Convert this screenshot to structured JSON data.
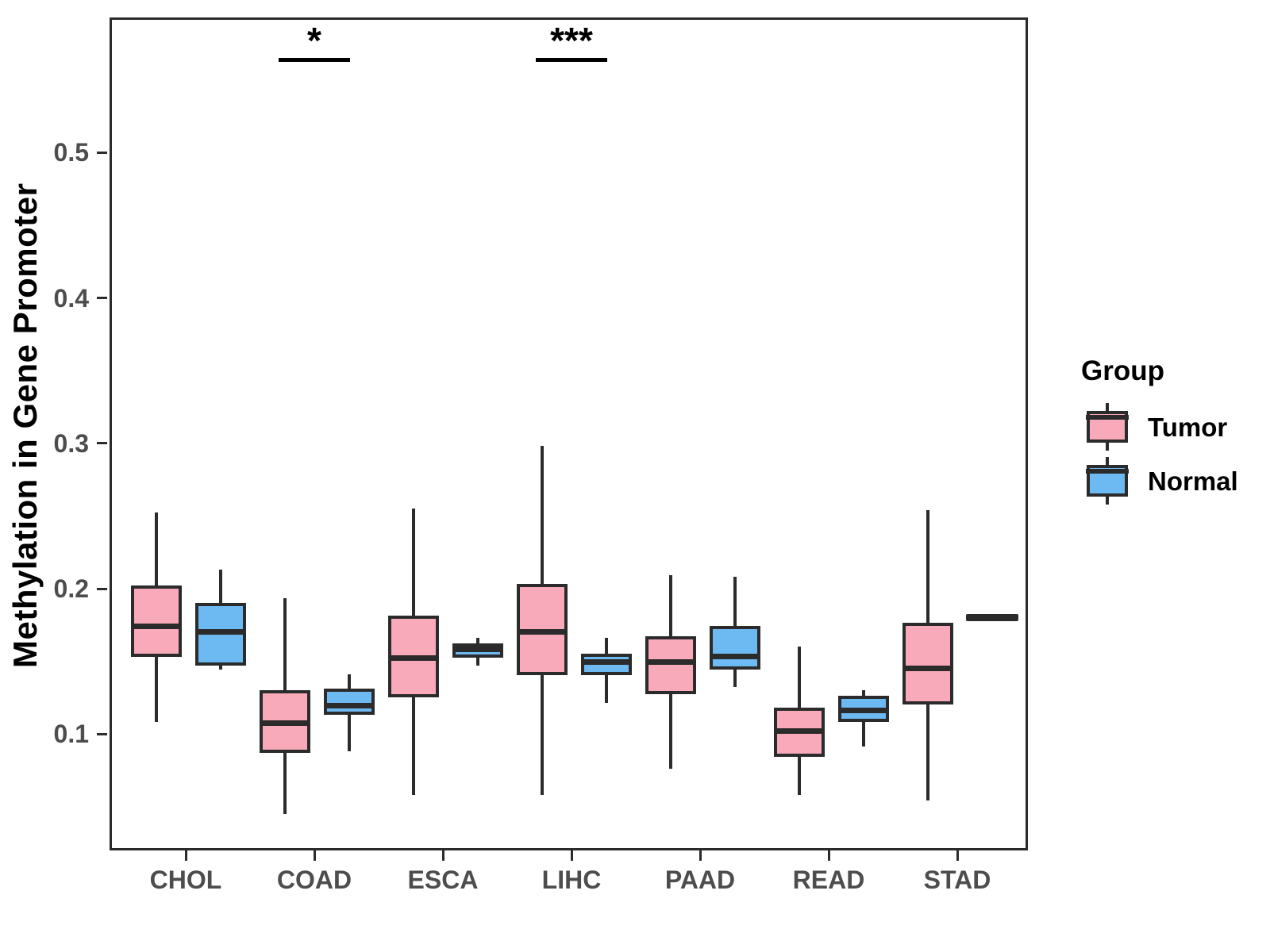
{
  "figure": {
    "y_axis": {
      "title": "Methylation in Gene Promoter",
      "tick_labels": [
        "0.1",
        "0.2",
        "0.3",
        "0.4",
        "0.5"
      ],
      "tick_values": [
        0.1,
        0.2,
        0.3,
        0.4,
        0.5
      ]
    },
    "x_axis": {
      "categories": [
        "CHOL",
        "COAD",
        "ESCA",
        "LIHC",
        "PAAD",
        "READ",
        "STAD"
      ]
    },
    "legend": {
      "title": "Group",
      "items": [
        {
          "label": "Tumor",
          "color": "#f9aaba"
        },
        {
          "label": "Normal",
          "color": "#6db9f2"
        }
      ]
    },
    "colors": {
      "tumor_fill": "#f9aaba",
      "normal_fill": "#6db9f2",
      "line_stroke": "#2b2b2b",
      "axis_text": "#4d4d4d",
      "annotation": "#000000"
    },
    "annotations": [
      {
        "category": "COAD",
        "label": "*"
      },
      {
        "category": "LIHC",
        "label": "***"
      }
    ]
  },
  "chart_data": {
    "type": "boxplot",
    "title": "",
    "xlabel": "",
    "ylabel": "Methylation in Gene Promoter",
    "ylim": [
      0.02,
      0.593
    ],
    "grid": false,
    "legend_position": "right",
    "categories": [
      "CHOL",
      "COAD",
      "ESCA",
      "LIHC",
      "PAAD",
      "READ",
      "STAD"
    ],
    "series": [
      {
        "name": "Tumor",
        "color": "#f9aaba",
        "boxes": [
          {
            "category": "CHOL",
            "whisker_low": 0.11,
            "q1": 0.155,
            "median": 0.176,
            "q3": 0.204,
            "whisker_high": 0.254
          },
          {
            "category": "COAD",
            "whisker_low": 0.047,
            "q1": 0.089,
            "median": 0.109,
            "q3": 0.132,
            "whisker_high": 0.195
          },
          {
            "category": "ESCA",
            "whisker_low": 0.06,
            "q1": 0.127,
            "median": 0.154,
            "q3": 0.183,
            "whisker_high": 0.257
          },
          {
            "category": "LIHC",
            "whisker_low": 0.06,
            "q1": 0.142,
            "median": 0.172,
            "q3": 0.205,
            "whisker_high": 0.3
          },
          {
            "category": "PAAD",
            "whisker_low": 0.078,
            "q1": 0.129,
            "median": 0.151,
            "q3": 0.169,
            "whisker_high": 0.211
          },
          {
            "category": "READ",
            "whisker_low": 0.06,
            "q1": 0.086,
            "median": 0.104,
            "q3": 0.12,
            "whisker_high": 0.162
          },
          {
            "category": "STAD",
            "whisker_low": 0.056,
            "q1": 0.122,
            "median": 0.147,
            "q3": 0.178,
            "whisker_high": 0.256
          }
        ]
      },
      {
        "name": "Normal",
        "color": "#6db9f2",
        "boxes": [
          {
            "category": "CHOL",
            "whisker_low": 0.146,
            "q1": 0.149,
            "median": 0.172,
            "q3": 0.192,
            "whisker_high": 0.215
          },
          {
            "category": "COAD",
            "whisker_low": 0.09,
            "q1": 0.115,
            "median": 0.121,
            "q3": 0.133,
            "whisker_high": 0.143
          },
          {
            "category": "ESCA",
            "whisker_low": 0.149,
            "q1": 0.154,
            "median": 0.16,
            "q3": 0.164,
            "whisker_high": 0.168
          },
          {
            "category": "LIHC",
            "whisker_low": 0.123,
            "q1": 0.142,
            "median": 0.151,
            "q3": 0.157,
            "whisker_high": 0.168
          },
          {
            "category": "PAAD",
            "whisker_low": 0.134,
            "q1": 0.146,
            "median": 0.155,
            "q3": 0.176,
            "whisker_high": 0.21
          },
          {
            "category": "READ",
            "whisker_low": 0.093,
            "q1": 0.11,
            "median": 0.118,
            "q3": 0.128,
            "whisker_high": 0.132
          },
          {
            "category": "STAD",
            "median": 0.182,
            "line_only": true
          }
        ]
      }
    ]
  }
}
